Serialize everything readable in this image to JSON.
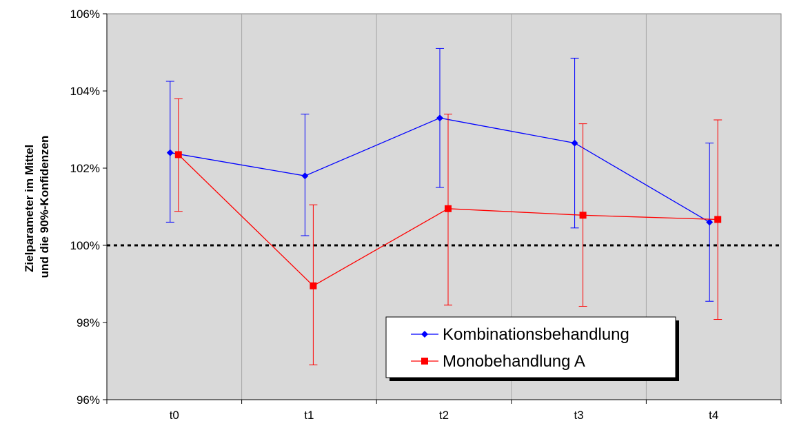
{
  "chart_data": {
    "type": "line",
    "title": "",
    "categories": [
      "t0",
      "t1",
      "t2",
      "t3",
      "t4"
    ],
    "ylabel_lines": [
      "Zielparameter im Mittel",
      "und die 90%-Konfidenzen"
    ],
    "xlabel": "",
    "ylim": [
      96,
      106
    ],
    "yticks": [
      96,
      98,
      100,
      102,
      104,
      106
    ],
    "ytick_labels": [
      "96%",
      "98%",
      "100%",
      "102%",
      "104%",
      "106%"
    ],
    "reference_line": {
      "y": 100,
      "style": "dotted",
      "color": "#000000"
    },
    "plot_background": "#d9d9d9",
    "vertical_gridlines": true,
    "legend_position": "bottom-center",
    "series": [
      {
        "name": "Kombinationsbehandlung",
        "color": "#0000ff",
        "marker": "diamond",
        "values": [
          102.4,
          101.8,
          103.3,
          102.65,
          100.6
        ],
        "ci_low": [
          100.6,
          100.25,
          101.5,
          100.45,
          98.55
        ],
        "ci_high": [
          104.25,
          103.4,
          105.1,
          104.85,
          102.65
        ]
      },
      {
        "name": "Monobehandlung A",
        "color": "#ff0000",
        "marker": "square",
        "values": [
          102.35,
          98.95,
          100.95,
          100.78,
          100.67
        ],
        "ci_low": [
          100.88,
          96.9,
          98.45,
          98.42,
          98.08
        ],
        "ci_high": [
          103.8,
          101.05,
          103.4,
          103.15,
          103.25
        ]
      }
    ]
  }
}
